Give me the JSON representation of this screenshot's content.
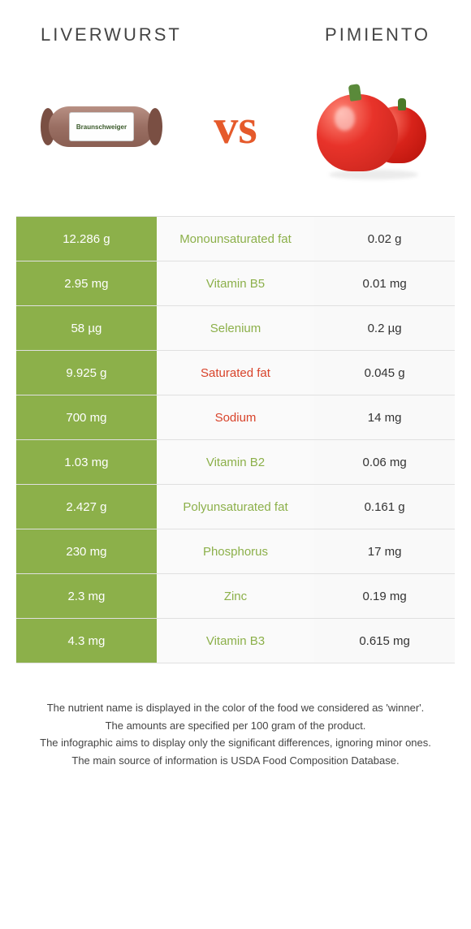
{
  "titles": {
    "left": "Liverwurst",
    "right": "Pimiento"
  },
  "vs": "vs",
  "sausage_label": "Braunschweiger",
  "colors": {
    "left_bg": "#8cb04a",
    "right_bg": "#f9f9f9",
    "mid_bg": "#fafafa",
    "row_border": "#e0e0e0",
    "winner_left_text": "#8cb04a",
    "winner_right_text": "#d8432a",
    "vs_color": "#e55a2b"
  },
  "rows": [
    {
      "left": "12.286 g",
      "label": "Monounsaturated fat",
      "right": "0.02 g",
      "winner": "left"
    },
    {
      "left": "2.95 mg",
      "label": "Vitamin B5",
      "right": "0.01 mg",
      "winner": "left"
    },
    {
      "left": "58 µg",
      "label": "Selenium",
      "right": "0.2 µg",
      "winner": "left"
    },
    {
      "left": "9.925 g",
      "label": "Saturated fat",
      "right": "0.045 g",
      "winner": "right"
    },
    {
      "left": "700 mg",
      "label": "Sodium",
      "right": "14 mg",
      "winner": "right"
    },
    {
      "left": "1.03 mg",
      "label": "Vitamin B2",
      "right": "0.06 mg",
      "winner": "left"
    },
    {
      "left": "2.427 g",
      "label": "Polyunsaturated fat",
      "right": "0.161 g",
      "winner": "left"
    },
    {
      "left": "230 mg",
      "label": "Phosphorus",
      "right": "17 mg",
      "winner": "left"
    },
    {
      "left": "2.3 mg",
      "label": "Zinc",
      "right": "0.19 mg",
      "winner": "left"
    },
    {
      "left": "4.3 mg",
      "label": "Vitamin B3",
      "right": "0.615 mg",
      "winner": "left"
    }
  ],
  "footer": {
    "line1": "The nutrient name is displayed in the color of the food we considered as 'winner'.",
    "line2": "The amounts are specified per 100 gram of the product.",
    "line3": "The infographic aims to display only the significant differences, ignoring minor ones.",
    "line4": "The main source of information is USDA Food Composition Database."
  },
  "typography": {
    "title_fontsize": 22,
    "title_letterspacing": 3,
    "vs_fontsize": 60,
    "cell_fontsize": 15,
    "footer_fontsize": 13
  }
}
